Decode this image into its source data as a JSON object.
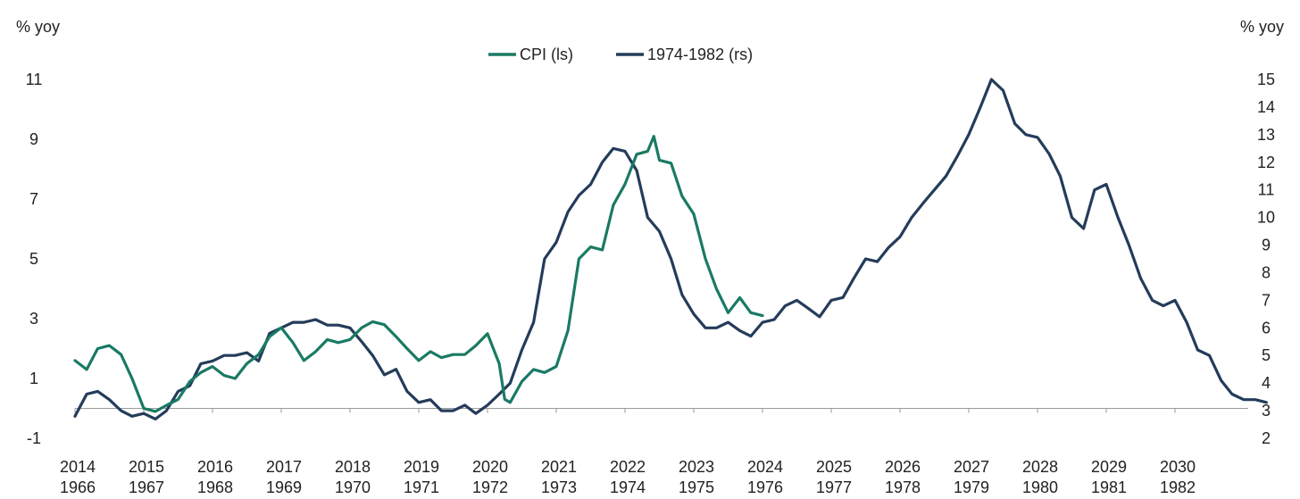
{
  "chart_data": {
    "type": "line",
    "title": "",
    "y_left_label": "% yoy",
    "y_right_label": "% yoy",
    "y_left_range": [
      -1,
      11
    ],
    "y_right_range": [
      2,
      15
    ],
    "y_left_ticks": [
      "-1",
      "1",
      "3",
      "5",
      "7",
      "9",
      "11"
    ],
    "y_right_ticks": [
      "2",
      "3",
      "4",
      "5",
      "6",
      "7",
      "8",
      "9",
      "10",
      "11",
      "12",
      "13",
      "14",
      "15"
    ],
    "x_axis_top_labels": [
      "2014",
      "2015",
      "2016",
      "2017",
      "2018",
      "2019",
      "2020",
      "2021",
      "2022",
      "2023",
      "2024",
      "2025",
      "2026",
      "2027",
      "2028",
      "2029",
      "2030"
    ],
    "x_axis_bottom_labels": [
      "1966",
      "1967",
      "1968",
      "1969",
      "1970",
      "1971",
      "1972",
      "1973",
      "1974",
      "1975",
      "1976",
      "1977",
      "1978",
      "1979",
      "1980",
      "1981",
      "1982"
    ],
    "x_range": [
      2014,
      2031.5
    ],
    "legend_position": "top-center",
    "grid": false,
    "series": [
      {
        "name": "CPI (ls)",
        "axis": "left",
        "color": "#1a7a64",
        "x": [
          2014.0,
          2014.17,
          2014.33,
          2014.5,
          2014.67,
          2014.83,
          2015.0,
          2015.17,
          2015.33,
          2015.5,
          2015.67,
          2015.83,
          2016.0,
          2016.17,
          2016.33,
          2016.5,
          2016.67,
          2016.83,
          2017.0,
          2017.17,
          2017.33,
          2017.5,
          2017.67,
          2017.83,
          2018.0,
          2018.17,
          2018.33,
          2018.5,
          2018.67,
          2018.83,
          2019.0,
          2019.17,
          2019.33,
          2019.5,
          2019.67,
          2019.83,
          2020.0,
          2020.17,
          2020.25,
          2020.33,
          2020.5,
          2020.67,
          2020.83,
          2021.0,
          2021.17,
          2021.33,
          2021.5,
          2021.67,
          2021.83,
          2022.0,
          2022.17,
          2022.33,
          2022.42,
          2022.5,
          2022.67,
          2022.83,
          2023.0,
          2023.17,
          2023.33,
          2023.5,
          2023.67,
          2023.83,
          2024.0
        ],
        "y": [
          1.6,
          1.3,
          2.0,
          2.1,
          1.8,
          1.0,
          0.0,
          -0.1,
          0.1,
          0.3,
          0.9,
          1.2,
          1.4,
          1.1,
          1.0,
          1.5,
          1.8,
          2.4,
          2.7,
          2.2,
          1.6,
          1.9,
          2.3,
          2.2,
          2.3,
          2.7,
          2.9,
          2.8,
          2.4,
          2.0,
          1.6,
          1.9,
          1.7,
          1.8,
          1.8,
          2.1,
          2.5,
          1.5,
          0.3,
          0.2,
          0.9,
          1.3,
          1.2,
          1.4,
          2.6,
          5.0,
          5.4,
          5.3,
          6.8,
          7.5,
          8.5,
          8.6,
          9.1,
          8.3,
          8.2,
          7.1,
          6.5,
          5.0,
          4.0,
          3.2,
          3.7,
          3.2,
          3.1
        ]
      },
      {
        "name": "1974-1982 (rs)",
        "axis": "right",
        "color": "#243c5a",
        "x": [
          2014.0,
          2014.17,
          2014.33,
          2014.5,
          2014.67,
          2014.83,
          2015.0,
          2015.17,
          2015.33,
          2015.5,
          2015.67,
          2015.83,
          2016.0,
          2016.17,
          2016.33,
          2016.5,
          2016.67,
          2016.83,
          2017.0,
          2017.17,
          2017.33,
          2017.5,
          2017.67,
          2017.83,
          2018.0,
          2018.17,
          2018.33,
          2018.5,
          2018.67,
          2018.83,
          2019.0,
          2019.17,
          2019.33,
          2019.5,
          2019.67,
          2019.83,
          2020.0,
          2020.17,
          2020.33,
          2020.5,
          2020.67,
          2020.83,
          2021.0,
          2021.17,
          2021.33,
          2021.5,
          2021.67,
          2021.83,
          2022.0,
          2022.17,
          2022.33,
          2022.5,
          2022.67,
          2022.83,
          2023.0,
          2023.17,
          2023.33,
          2023.5,
          2023.67,
          2023.83,
          2024.0,
          2024.17,
          2024.33,
          2024.5,
          2024.67,
          2024.83,
          2025.0,
          2025.17,
          2025.33,
          2025.5,
          2025.67,
          2025.83,
          2026.0,
          2026.17,
          2026.33,
          2026.5,
          2026.67,
          2026.83,
          2027.0,
          2027.17,
          2027.33,
          2027.5,
          2027.67,
          2027.83,
          2028.0,
          2028.17,
          2028.33,
          2028.5,
          2028.67,
          2028.83,
          2029.0,
          2029.17,
          2029.33,
          2029.5,
          2029.67,
          2029.83,
          2030.0,
          2030.17,
          2030.33,
          2030.5,
          2030.67,
          2030.83,
          2031.0,
          2031.17,
          2031.33
        ],
        "y": [
          2.8,
          3.6,
          3.7,
          3.4,
          3.0,
          2.8,
          2.9,
          2.7,
          3.0,
          3.7,
          3.9,
          4.7,
          4.8,
          5.0,
          5.0,
          5.1,
          4.8,
          5.8,
          6.0,
          6.2,
          6.2,
          6.3,
          6.1,
          6.1,
          6.0,
          5.5,
          5.0,
          4.3,
          4.5,
          3.7,
          3.3,
          3.4,
          3.0,
          3.0,
          3.2,
          2.9,
          3.2,
          3.6,
          4.0,
          5.2,
          6.2,
          8.5,
          9.1,
          10.2,
          10.8,
          11.2,
          12.0,
          12.5,
          12.4,
          11.7,
          10.0,
          9.5,
          8.5,
          7.2,
          6.5,
          6.0,
          6.0,
          6.2,
          5.9,
          5.7,
          6.2,
          6.3,
          6.8,
          7.0,
          6.7,
          6.4,
          7.0,
          7.1,
          7.8,
          8.5,
          8.4,
          8.9,
          9.3,
          10.0,
          10.5,
          11.0,
          11.5,
          12.2,
          13.0,
          14.0,
          15.0,
          14.6,
          13.4,
          13.0,
          12.9,
          12.3,
          11.5,
          10.0,
          9.6,
          11.0,
          11.2,
          10.0,
          9.0,
          7.8,
          7.0,
          6.8,
          7.0,
          6.2,
          5.2,
          5.0,
          4.1,
          3.6,
          3.4,
          3.4,
          3.3
        ]
      }
    ]
  }
}
